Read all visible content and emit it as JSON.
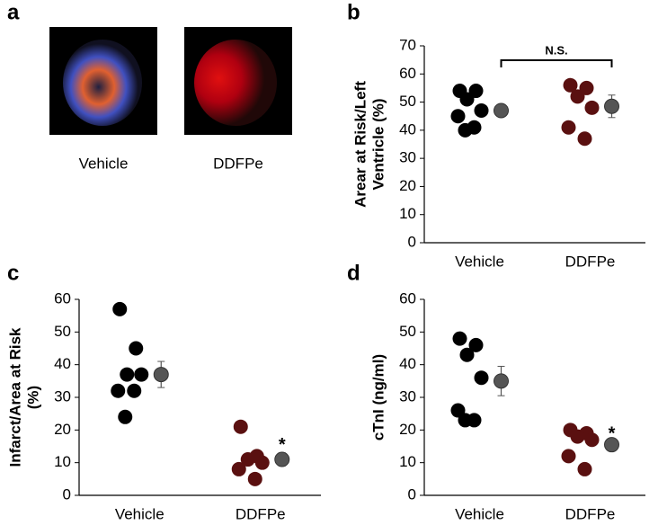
{
  "panel_a": {
    "label": "a",
    "captions": [
      "Vehicle",
      "DDFPe"
    ]
  },
  "chart_data": [
    {
      "type": "dot",
      "label": "b",
      "ylabel": [
        "Arear at Risk/Left",
        "Ventricle (%)"
      ],
      "categories": [
        "Vehicle",
        "DDFPe"
      ],
      "ylim": [
        0,
        70
      ],
      "yticks": [
        0,
        10,
        20,
        30,
        40,
        50,
        60,
        70
      ],
      "points": [
        [
          54,
          54,
          51,
          47,
          45,
          41,
          40
        ],
        [
          56,
          55,
          52,
          48,
          41,
          37
        ]
      ],
      "point_colors": [
        "#000000",
        "#5a1010"
      ],
      "means": [
        47,
        48.5
      ],
      "errors": [
        2,
        4
      ],
      "mean_color": "#555555",
      "annotation": "N.S.",
      "annotation_style": "bracket"
    },
    {
      "type": "dot",
      "label": "c",
      "ylabel": [
        "Infarct/Area at Risk",
        "(%)"
      ],
      "categories": [
        "Vehicle",
        "DDFPe"
      ],
      "ylim": [
        0,
        60
      ],
      "yticks": [
        0,
        10,
        20,
        30,
        40,
        50,
        60
      ],
      "points": [
        [
          57,
          45,
          37,
          37,
          32,
          32,
          24
        ],
        [
          21,
          12,
          11,
          10,
          8,
          5
        ]
      ],
      "point_colors": [
        "#000000",
        "#5a1010"
      ],
      "means": [
        37,
        11
      ],
      "errors": [
        4,
        2
      ],
      "mean_color": "#555555",
      "annotation": "*",
      "annotation_style": "mean"
    },
    {
      "type": "dot",
      "label": "d",
      "ylabel": [
        "cTnI (ng/ml)"
      ],
      "categories": [
        "Vehicle",
        "DDFPe"
      ],
      "ylim": [
        0,
        60
      ],
      "yticks": [
        0,
        10,
        20,
        30,
        40,
        50,
        60
      ],
      "points": [
        [
          48,
          46,
          43,
          36,
          26,
          23,
          23
        ],
        [
          20,
          19,
          18,
          17,
          12,
          8
        ]
      ],
      "point_colors": [
        "#000000",
        "#5a1010"
      ],
      "means": [
        35,
        15.5
      ],
      "errors": [
        4.5,
        1
      ],
      "mean_color": "#555555",
      "annotation": "*",
      "annotation_style": "mean"
    }
  ]
}
